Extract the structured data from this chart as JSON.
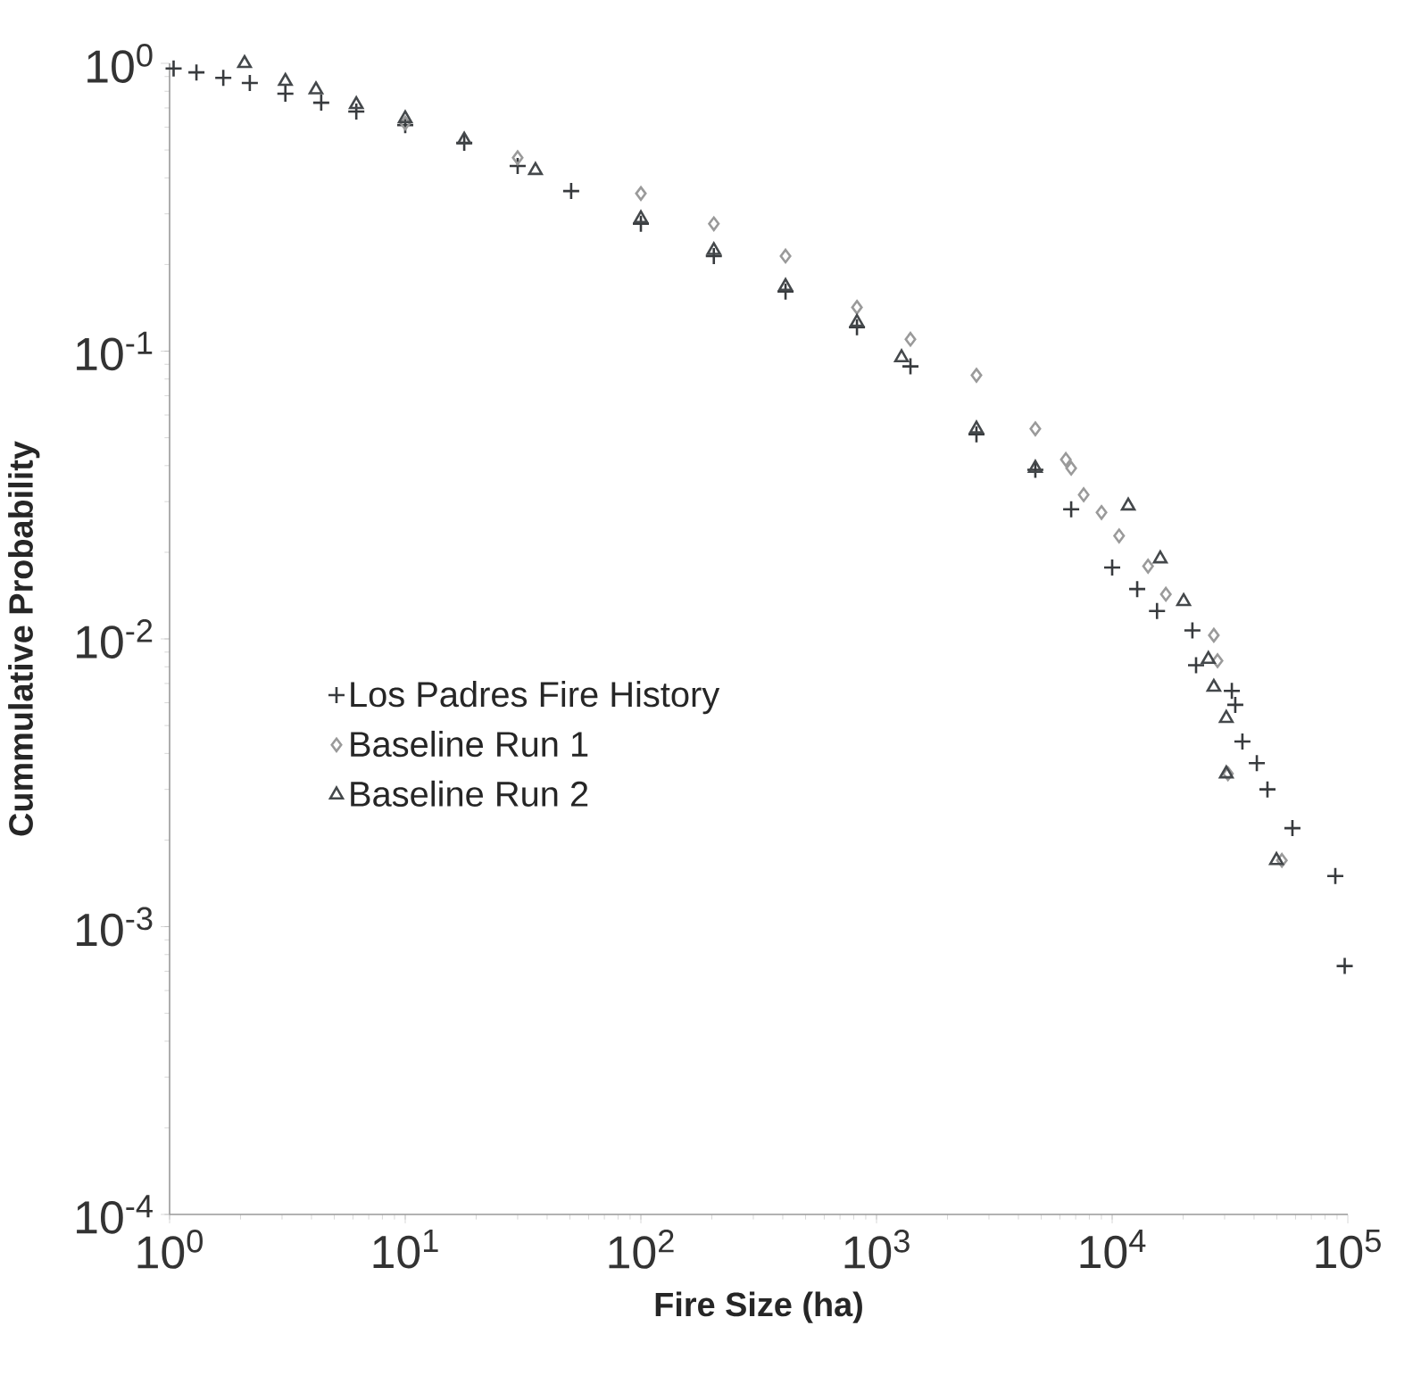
{
  "chart_data": {
    "type": "scatter",
    "xlabel": "Fire Size (ha)",
    "ylabel": "Cummulative Probability",
    "log": "xy",
    "xlim": [
      1,
      100000
    ],
    "ylim": [
      0.0001,
      1
    ],
    "xticks": [
      {
        "value": 1,
        "label": "10$^{0}$"
      },
      {
        "value": 10,
        "label": "10$^{1}$"
      },
      {
        "value": 100,
        "label": "10$^{2}$"
      },
      {
        "value": 1000,
        "label": "10$^{3}$"
      },
      {
        "value": 10000,
        "label": "10$^{4}$"
      },
      {
        "value": 100000,
        "label": "10$^{5}$"
      }
    ],
    "yticks": [
      {
        "value": 0.0001,
        "label": "10$^{-4}$"
      },
      {
        "value": 0.001,
        "label": "10$^{-3}$"
      },
      {
        "value": 0.01,
        "label": "10$^{-2}$"
      },
      {
        "value": 0.1,
        "label": "10$^{-1}$"
      },
      {
        "value": 1,
        "label": "10$^{0}$"
      }
    ],
    "grid": false,
    "legend": "left",
    "series": [
      {
        "name": "Los Padres Fire History",
        "color": "#383b3e",
        "marker": "cross",
        "x": [
          1.04,
          1.3,
          1.69,
          2.19,
          3.1,
          4.4,
          6.2,
          10,
          17.8,
          30,
          50.6,
          100,
          204,
          411,
          826,
          1393,
          2655,
          4720,
          6700,
          10000,
          12770,
          15500,
          21900,
          22700,
          32200,
          33300,
          35700,
          41100,
          45600,
          58200,
          88500,
          97000
        ],
        "values": [
          0.96,
          0.93,
          0.89,
          0.855,
          0.785,
          0.73,
          0.68,
          0.61,
          0.53,
          0.44,
          0.36,
          0.277,
          0.214,
          0.161,
          0.121,
          0.0885,
          0.0514,
          0.0387,
          0.0282,
          0.0177,
          0.0149,
          0.0125,
          0.0107,
          0.0081,
          0.0066,
          0.0059,
          0.0044,
          0.0037,
          0.003,
          0.0022,
          0.0015,
          0.00073
        ]
      },
      {
        "name": "Baseline Run 1",
        "color": "#9a9a9a",
        "marker": "diamond",
        "x": [
          10,
          30,
          100,
          204,
          411,
          826,
          1393,
          2655,
          4720,
          6360,
          6700,
          7570,
          9010,
          10700,
          14200,
          16900,
          27000,
          28000,
          31000,
          52500
        ],
        "values": [
          0.62,
          0.47,
          0.353,
          0.277,
          0.214,
          0.142,
          0.11,
          0.0824,
          0.0537,
          0.042,
          0.0392,
          0.0317,
          0.0275,
          0.0228,
          0.0179,
          0.0143,
          0.0103,
          0.0084,
          0.0034,
          0.0017
        ]
      },
      {
        "name": "Baseline Run 2",
        "color": "#44484b",
        "marker": "triangle",
        "x": [
          2.08,
          3.1,
          4.18,
          6.2,
          10,
          17.8,
          35.7,
          100,
          204,
          411,
          826,
          1277,
          2655,
          4720,
          11700,
          16000,
          20100,
          25600,
          27000,
          30500,
          30500,
          49800
        ],
        "values": [
          1.0,
          0.867,
          0.81,
          0.72,
          0.643,
          0.542,
          0.425,
          0.289,
          0.224,
          0.168,
          0.126,
          0.095,
          0.0537,
          0.0392,
          0.029,
          0.019,
          0.0135,
          0.0085,
          0.0068,
          0.0053,
          0.0034,
          0.0017
        ]
      }
    ]
  }
}
